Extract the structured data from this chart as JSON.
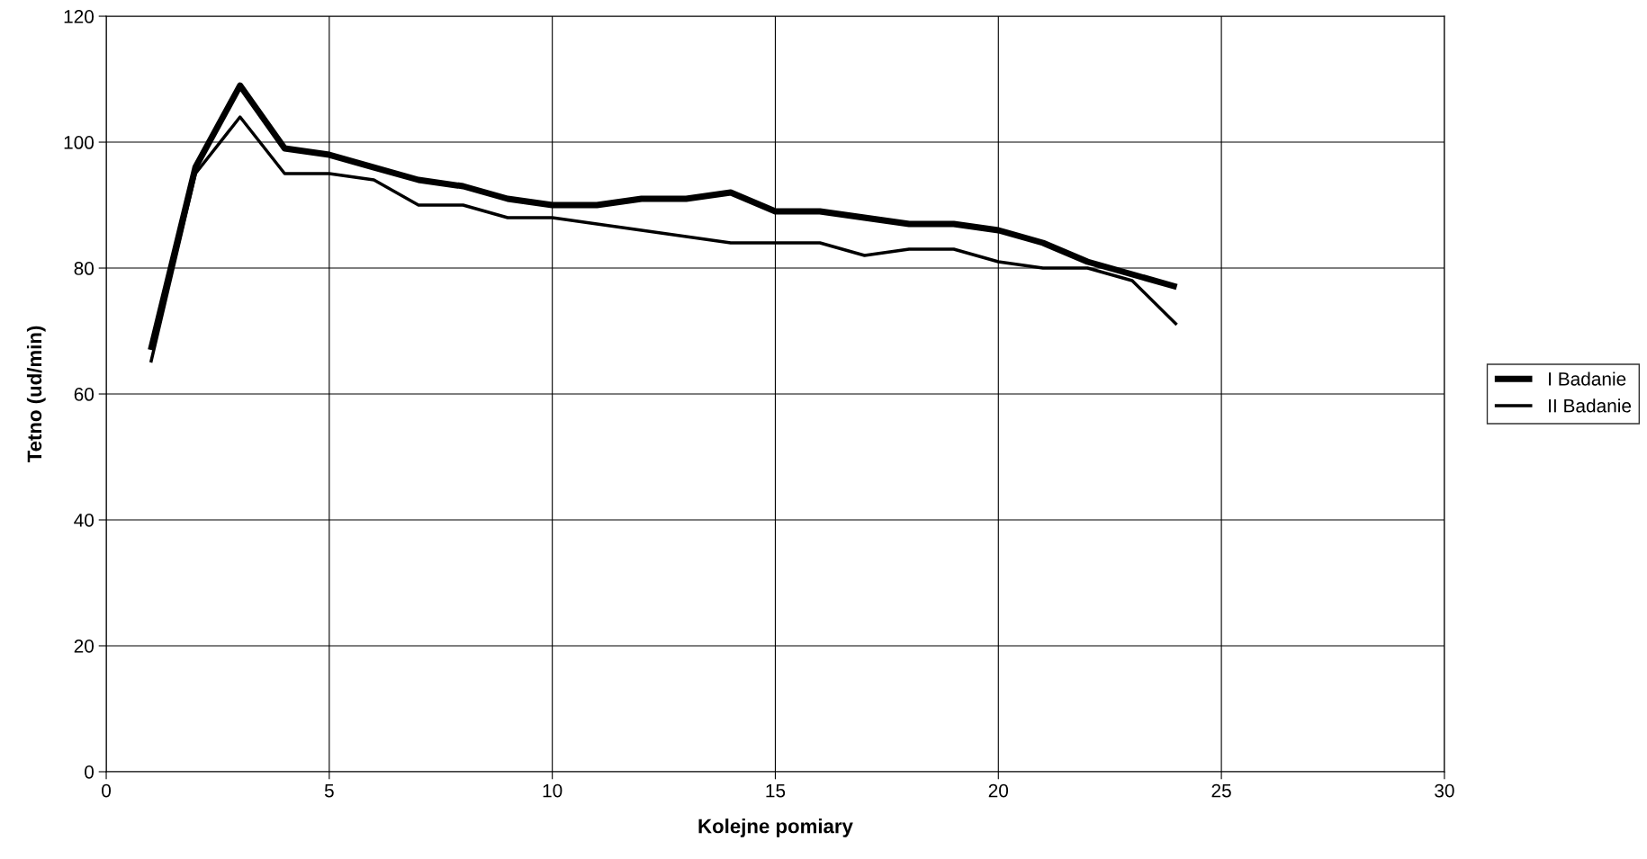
{
  "chart_data": {
    "type": "line",
    "xlabel": "Kolejne pomiary",
    "ylabel": "Tetno (ud/min)",
    "x": [
      1,
      2,
      3,
      4,
      5,
      6,
      7,
      8,
      9,
      10,
      11,
      12,
      13,
      14,
      15,
      16,
      17,
      18,
      19,
      20,
      21,
      22,
      23,
      24
    ],
    "series": [
      {
        "name": "I Badanie",
        "color": "#000000",
        "values": [
          67,
          96,
          109,
          99,
          98,
          96,
          94,
          93,
          91,
          90,
          90,
          91,
          91,
          92,
          89,
          89,
          88,
          87,
          87,
          86,
          84,
          81,
          79,
          77
        ]
      },
      {
        "name": "II Badanie",
        "color": "#000000",
        "values": [
          65,
          95,
          104,
          95,
          95,
          94,
          90,
          90,
          88,
          88,
          87,
          86,
          85,
          84,
          84,
          84,
          82,
          83,
          83,
          81,
          80,
          80,
          78,
          71
        ]
      }
    ],
    "xlim": [
      0,
      30
    ],
    "xticks": [
      0,
      5,
      10,
      15,
      20,
      25,
      30
    ],
    "ylim": [
      0,
      120
    ],
    "yticks": [
      0,
      20,
      40,
      60,
      80,
      100,
      120
    ],
    "grid": true,
    "legend": "right",
    "marker": "none",
    "line_style": "solid"
  }
}
